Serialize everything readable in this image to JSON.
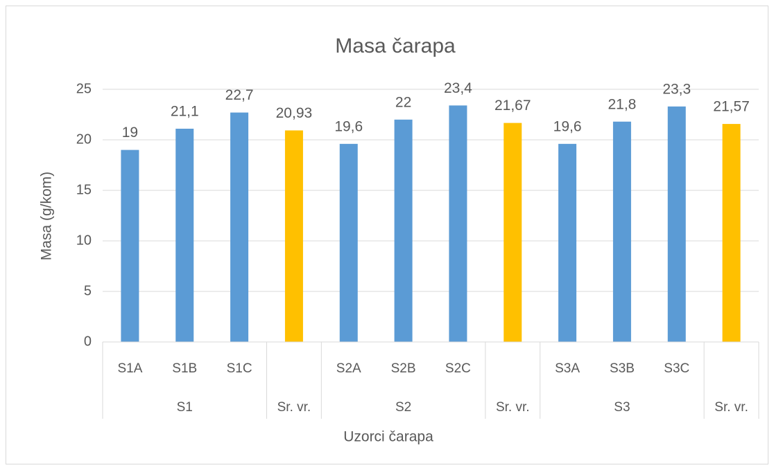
{
  "chart_data": {
    "type": "bar",
    "title": "Masa čarapa",
    "x_label": "Uzorci čarapa",
    "y_label": "Masa (g/kom)",
    "categories": [
      "S1A",
      "S1B",
      "S1C",
      null,
      "S2A",
      "S2B",
      "S2C",
      null,
      "S3A",
      "S3B",
      "S3C",
      null
    ],
    "groups": [
      "S1",
      "S1",
      "S1",
      "Sr. vr.",
      "S2",
      "S2",
      "S2",
      "Sr. vr.",
      "S3",
      "S3",
      "S3",
      "Sr. vr."
    ],
    "values": [
      19,
      21.1,
      22.7,
      20.93,
      19.6,
      22,
      23.4,
      21.67,
      19.6,
      21.8,
      23.3,
      21.57
    ],
    "value_labels": [
      "19",
      "21,1",
      "22,7",
      "20,93",
      "19,6",
      "22",
      "23,4",
      "21,67",
      "19,6",
      "21,8",
      "23,3",
      "21,57"
    ],
    "colors": [
      "#5b9bd5",
      "#5b9bd5",
      "#5b9bd5",
      "#ffc000",
      "#5b9bd5",
      "#5b9bd5",
      "#5b9bd5",
      "#ffc000",
      "#5b9bd5",
      "#5b9bd5",
      "#5b9bd5",
      "#ffc000"
    ],
    "ylim": [
      0,
      25
    ],
    "yticks": [
      0,
      5,
      10,
      15,
      20,
      25
    ],
    "grid": true
  }
}
